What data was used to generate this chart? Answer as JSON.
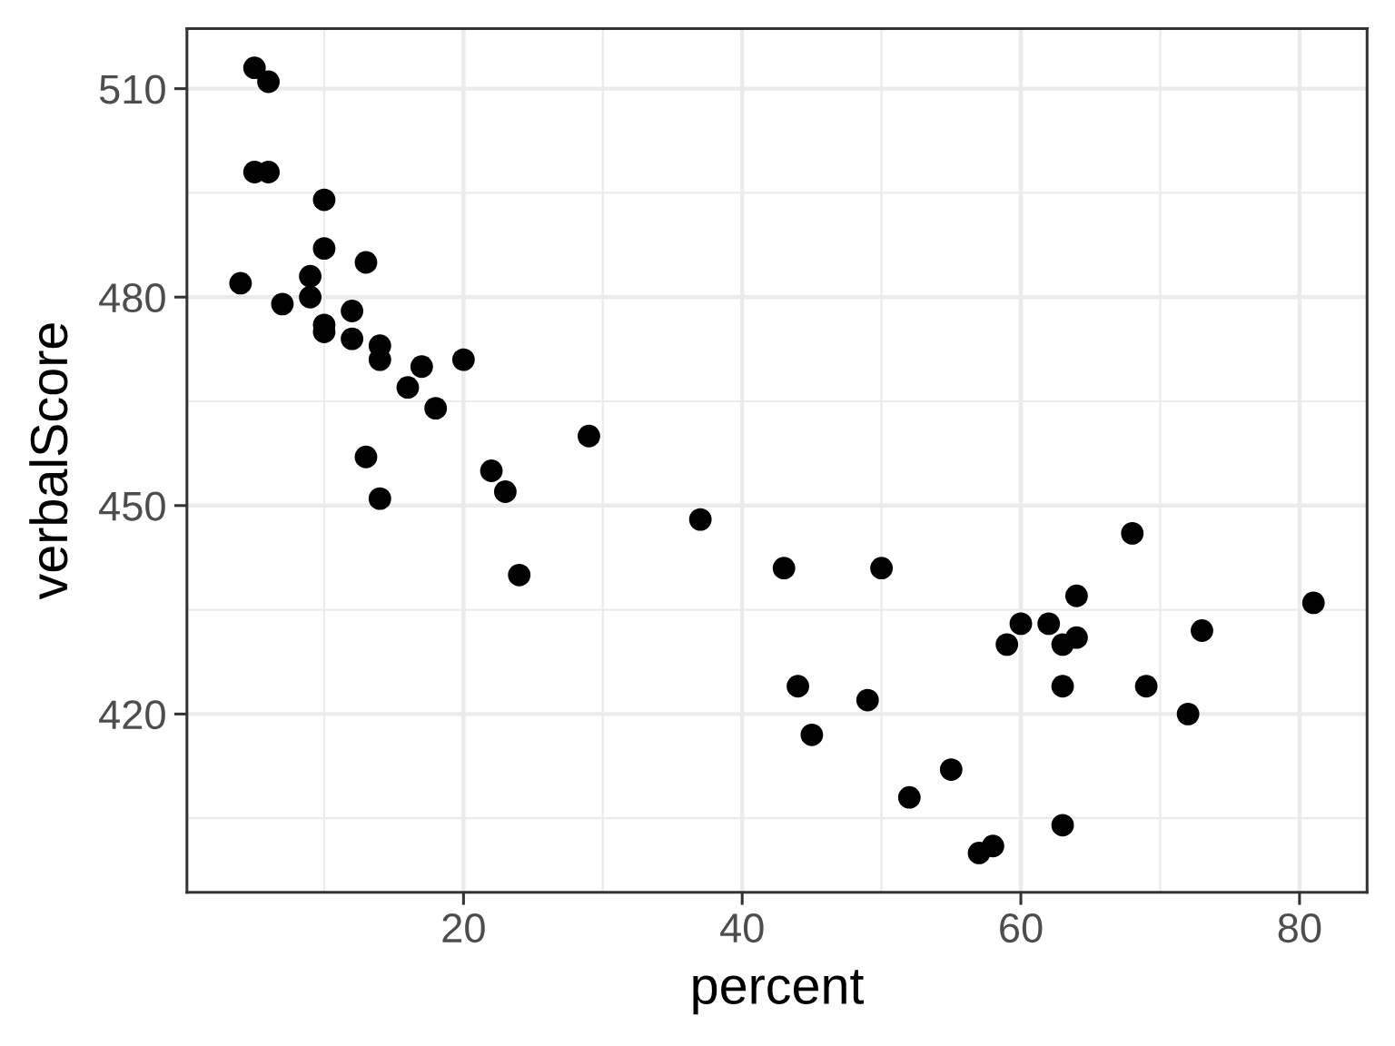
{
  "chart_data": {
    "type": "scatter",
    "xlabel": "percent",
    "ylabel": "verbalScore",
    "x": [
      5,
      6,
      5,
      6,
      10,
      10,
      13,
      4,
      9,
      9,
      7,
      12,
      10,
      10,
      12,
      14,
      14,
      17,
      20,
      16,
      18,
      29,
      13,
      22,
      23,
      14,
      24,
      37,
      43,
      50,
      44,
      49,
      45,
      55,
      52,
      57,
      58,
      68,
      64,
      81,
      60,
      62,
      73,
      59,
      63,
      64,
      63,
      69,
      72,
      63
    ],
    "values": [
      513,
      511,
      498,
      498,
      494,
      487,
      485,
      482,
      483,
      480,
      479,
      478,
      476,
      475,
      474,
      473,
      471,
      470,
      471,
      467,
      464,
      460,
      457,
      455,
      452,
      451,
      440,
      448,
      441,
      441,
      424,
      422,
      417,
      412,
      408,
      400,
      401,
      446,
      437,
      436,
      433,
      433,
      432,
      430,
      430,
      431,
      424,
      424,
      420,
      404
    ],
    "color": "#000000",
    "marker": "circle",
    "xlim": [
      0.15,
      84.85
    ],
    "ylim": [
      394.35,
      518.65
    ],
    "xticks": [
      20,
      40,
      60,
      80
    ],
    "yticks": [
      420,
      450,
      480,
      510
    ],
    "grid": true
  }
}
